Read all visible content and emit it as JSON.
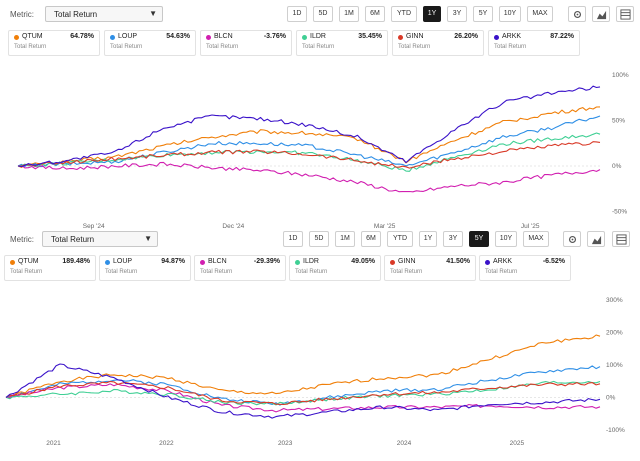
{
  "panels": [
    {
      "metric_label": "Metric:",
      "metric_value": "Total Return",
      "ranges": [
        "1D",
        "5D",
        "1M",
        "6M",
        "YTD",
        "1Y",
        "3Y",
        "5Y",
        "10Y",
        "MAX"
      ],
      "active_range": "1Y",
      "legend_sublabel": "Total Return",
      "series_meta": [
        {
          "ticker": "QTUM",
          "value": "64.78%",
          "color": "#f07f09"
        },
        {
          "ticker": "LOUP",
          "value": "54.63%",
          "color": "#2f8fe6"
        },
        {
          "ticker": "BLCN",
          "value": "-3.76%",
          "color": "#d11fb0"
        },
        {
          "ticker": "ILDR",
          "value": "35.45%",
          "color": "#3fcf94"
        },
        {
          "ticker": "GINN",
          "value": "26.20%",
          "color": "#d93a28"
        },
        {
          "ticker": "ARKK",
          "value": "87.22%",
          "color": "#3a12c9"
        }
      ]
    },
    {
      "metric_label": "Metric:",
      "metric_value": "Total Return",
      "ranges": [
        "1D",
        "5D",
        "1M",
        "6M",
        "YTD",
        "1Y",
        "3Y",
        "5Y",
        "10Y",
        "MAX"
      ],
      "active_range": "5Y",
      "legend_sublabel": "Total Return",
      "series_meta": [
        {
          "ticker": "QTUM",
          "value": "189.48%",
          "color": "#f07f09"
        },
        {
          "ticker": "LOUP",
          "value": "94.87%",
          "color": "#2f8fe6"
        },
        {
          "ticker": "BLCN",
          "value": "-29.39%",
          "color": "#d11fb0"
        },
        {
          "ticker": "ILDR",
          "value": "49.05%",
          "color": "#3fcf94"
        },
        {
          "ticker": "GINN",
          "value": "41.50%",
          "color": "#d93a28"
        },
        {
          "ticker": "ARKK",
          "value": "-6.52%",
          "color": "#3a12c9"
        }
      ]
    }
  ],
  "chart_data": [
    {
      "type": "line",
      "title": "",
      "xlabel": "",
      "ylabel": "",
      "x_tick_labels": [
        "Sep '24",
        "Dec '24",
        "Mar '25",
        "Jul '25"
      ],
      "y_tick_labels": [
        "100%",
        "50%",
        "0%",
        "-50%"
      ],
      "ylim": [
        -55,
        110
      ],
      "grid": false,
      "x": [
        "Aug '24",
        "Sep '24",
        "Oct '24",
        "Nov '24",
        "Dec '24",
        "Jan '25",
        "Feb '25",
        "Mar '25",
        "Apr '25",
        "May '25",
        "Jun '25",
        "Jul '25",
        "Aug '25"
      ],
      "series": [
        {
          "name": "QTUM",
          "values": [
            0,
            5,
            10,
            22,
            32,
            38,
            36,
            30,
            5,
            28,
            48,
            58,
            65
          ]
        },
        {
          "name": "LOUP",
          "values": [
            0,
            2,
            5,
            15,
            25,
            25,
            22,
            12,
            0,
            15,
            32,
            42,
            55
          ]
        },
        {
          "name": "BLCN",
          "values": [
            0,
            -3,
            0,
            2,
            -2,
            -5,
            -10,
            -18,
            -30,
            -22,
            -18,
            -10,
            -4
          ]
        },
        {
          "name": "ILDR",
          "values": [
            0,
            3,
            7,
            12,
            15,
            16,
            14,
            6,
            -5,
            10,
            24,
            30,
            35
          ]
        },
        {
          "name": "GINN",
          "values": [
            0,
            4,
            8,
            12,
            15,
            16,
            13,
            6,
            -2,
            8,
            16,
            22,
            26
          ]
        },
        {
          "name": "ARKK",
          "values": [
            0,
            6,
            15,
            42,
            55,
            52,
            45,
            32,
            5,
            40,
            70,
            80,
            87
          ]
        }
      ]
    },
    {
      "type": "line",
      "title": "",
      "xlabel": "",
      "ylabel": "",
      "x_tick_labels": [
        "2021",
        "2022",
        "2023",
        "2024",
        "2025"
      ],
      "y_tick_labels": [
        "300%",
        "200%",
        "100%",
        "0%",
        "-100%"
      ],
      "ylim": [
        -110,
        310
      ],
      "grid": false,
      "x": [
        "2020-08",
        "2021-01",
        "2021-06",
        "2022-01",
        "2022-06",
        "2023-01",
        "2023-06",
        "2024-01",
        "2024-06",
        "2025-01",
        "2025-06",
        "2025-08"
      ],
      "series": [
        {
          "name": "QTUM",
          "values": [
            0,
            50,
            70,
            60,
            20,
            10,
            40,
            60,
            70,
            120,
            170,
            189
          ]
        },
        {
          "name": "LOUP",
          "values": [
            0,
            40,
            55,
            40,
            -5,
            -20,
            0,
            20,
            25,
            55,
            80,
            95
          ]
        },
        {
          "name": "BLCN",
          "values": [
            0,
            30,
            40,
            20,
            -25,
            -40,
            -35,
            -30,
            -30,
            -25,
            -30,
            -29
          ]
        },
        {
          "name": "ILDR",
          "values": [
            0,
            10,
            20,
            10,
            -15,
            -20,
            -5,
            5,
            10,
            25,
            45,
            49
          ]
        },
        {
          "name": "GINN",
          "values": [
            0,
            35,
            45,
            30,
            -10,
            -20,
            -5,
            10,
            15,
            30,
            40,
            42
          ]
        },
        {
          "name": "ARKK",
          "values": [
            0,
            100,
            60,
            0,
            -45,
            -60,
            -45,
            -30,
            -40,
            -20,
            -15,
            -6
          ]
        }
      ]
    }
  ]
}
